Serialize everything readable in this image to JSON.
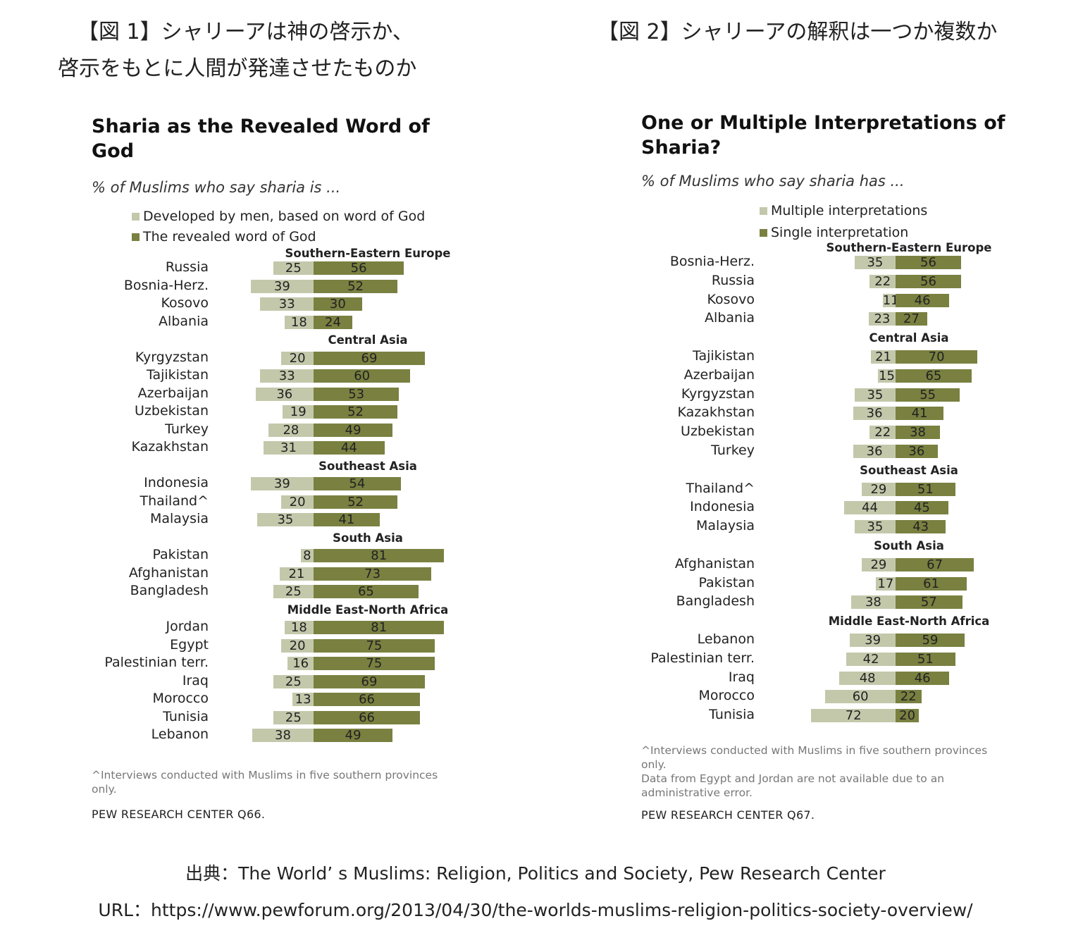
{
  "captions": {
    "fig1_line1": "【図 1】シャリーアは神の啓示か、",
    "fig1_line2": "啓示をもとに人間が発達させたものか",
    "fig2": "【図 2】シャリーアの解釈は一つか複数か"
  },
  "footer": {
    "source": "出典：The World’ s Muslims: Religion, Politics and Society, Pew Research Center",
    "url": "URL：https://www.pewforum.org/2013/04/30/the-worlds-muslims-religion-politics-society-overview/"
  },
  "colors": {
    "light": "#c4c8ab",
    "dark": "#7a8040"
  },
  "chart_data": [
    {
      "type": "bar",
      "title": "Sharia as the Revealed Word of God",
      "subtitle": "% of Muslims who say sharia is ...",
      "legend": [
        "Developed by men, based on word of God",
        "The revealed word of God"
      ],
      "note": "^Interviews conducted with Muslims in five southern provinces only.",
      "source": "PEW RESEARCH CENTER Q66.",
      "groups": [
        {
          "name": "Southern-Eastern Europe",
          "rows": [
            [
              "Russia",
              25,
              56
            ],
            [
              "Bosnia-Herz.",
              39,
              52
            ],
            [
              "Kosovo",
              33,
              30
            ],
            [
              "Albania",
              18,
              24
            ]
          ]
        },
        {
          "name": "Central Asia",
          "rows": [
            [
              "Kyrgyzstan",
              20,
              69
            ],
            [
              "Tajikistan",
              33,
              60
            ],
            [
              "Azerbaijan",
              36,
              53
            ],
            [
              "Uzbekistan",
              19,
              52
            ],
            [
              "Turkey",
              28,
              49
            ],
            [
              "Kazakhstan",
              31,
              44
            ]
          ]
        },
        {
          "name": "Southeast Asia",
          "rows": [
            [
              "Indonesia",
              39,
              54
            ],
            [
              "Thailand^",
              20,
              52
            ],
            [
              "Malaysia",
              35,
              41
            ]
          ]
        },
        {
          "name": "South Asia",
          "rows": [
            [
              "Pakistan",
              8,
              81
            ],
            [
              "Afghanistan",
              21,
              73
            ],
            [
              "Bangladesh",
              25,
              65
            ]
          ]
        },
        {
          "name": "Middle East-North Africa",
          "rows": [
            [
              "Jordan",
              18,
              81
            ],
            [
              "Egypt",
              20,
              75
            ],
            [
              "Palestinian terr.",
              16,
              75
            ],
            [
              "Iraq",
              25,
              69
            ],
            [
              "Morocco",
              13,
              66
            ],
            [
              "Tunisia",
              25,
              66
            ],
            [
              "Lebanon",
              38,
              49
            ]
          ]
        }
      ]
    },
    {
      "type": "bar",
      "title": "One or Multiple Interpretations of Sharia?",
      "subtitle": "% of Muslims who say sharia has ...",
      "legend": [
        "Multiple interpretations",
        "Single interpretation"
      ],
      "note": "^Interviews conducted with Muslims in five southern provinces only.\nData from Egypt and Jordan are not available due to an administrative error.",
      "source": "PEW RESEARCH CENTER Q67.",
      "groups": [
        {
          "name": "Southern-Eastern Europe",
          "rows": [
            [
              "Bosnia-Herz.",
              35,
              56
            ],
            [
              "Russia",
              22,
              56
            ],
            [
              "Kosovo",
              11,
              46
            ],
            [
              "Albania",
              23,
              27
            ]
          ]
        },
        {
          "name": "Central Asia",
          "rows": [
            [
              "Tajikistan",
              21,
              70
            ],
            [
              "Azerbaijan",
              15,
              65
            ],
            [
              "Kyrgyzstan",
              35,
              55
            ],
            [
              "Kazakhstan",
              36,
              41
            ],
            [
              "Uzbekistan",
              22,
              38
            ],
            [
              "Turkey",
              36,
              36
            ]
          ]
        },
        {
          "name": "Southeast Asia",
          "rows": [
            [
              "Thailand^",
              29,
              51
            ],
            [
              "Indonesia",
              44,
              45
            ],
            [
              "Malaysia",
              35,
              43
            ]
          ]
        },
        {
          "name": "South Asia",
          "rows": [
            [
              "Afghanistan",
              29,
              67
            ],
            [
              "Pakistan",
              17,
              61
            ],
            [
              "Bangladesh",
              38,
              57
            ]
          ]
        },
        {
          "name": "Middle East-North Africa",
          "rows": [
            [
              "Lebanon",
              39,
              59
            ],
            [
              "Palestinian terr.",
              42,
              51
            ],
            [
              "Iraq",
              48,
              46
            ],
            [
              "Morocco",
              60,
              22
            ],
            [
              "Tunisia",
              72,
              20
            ]
          ]
        }
      ]
    }
  ]
}
